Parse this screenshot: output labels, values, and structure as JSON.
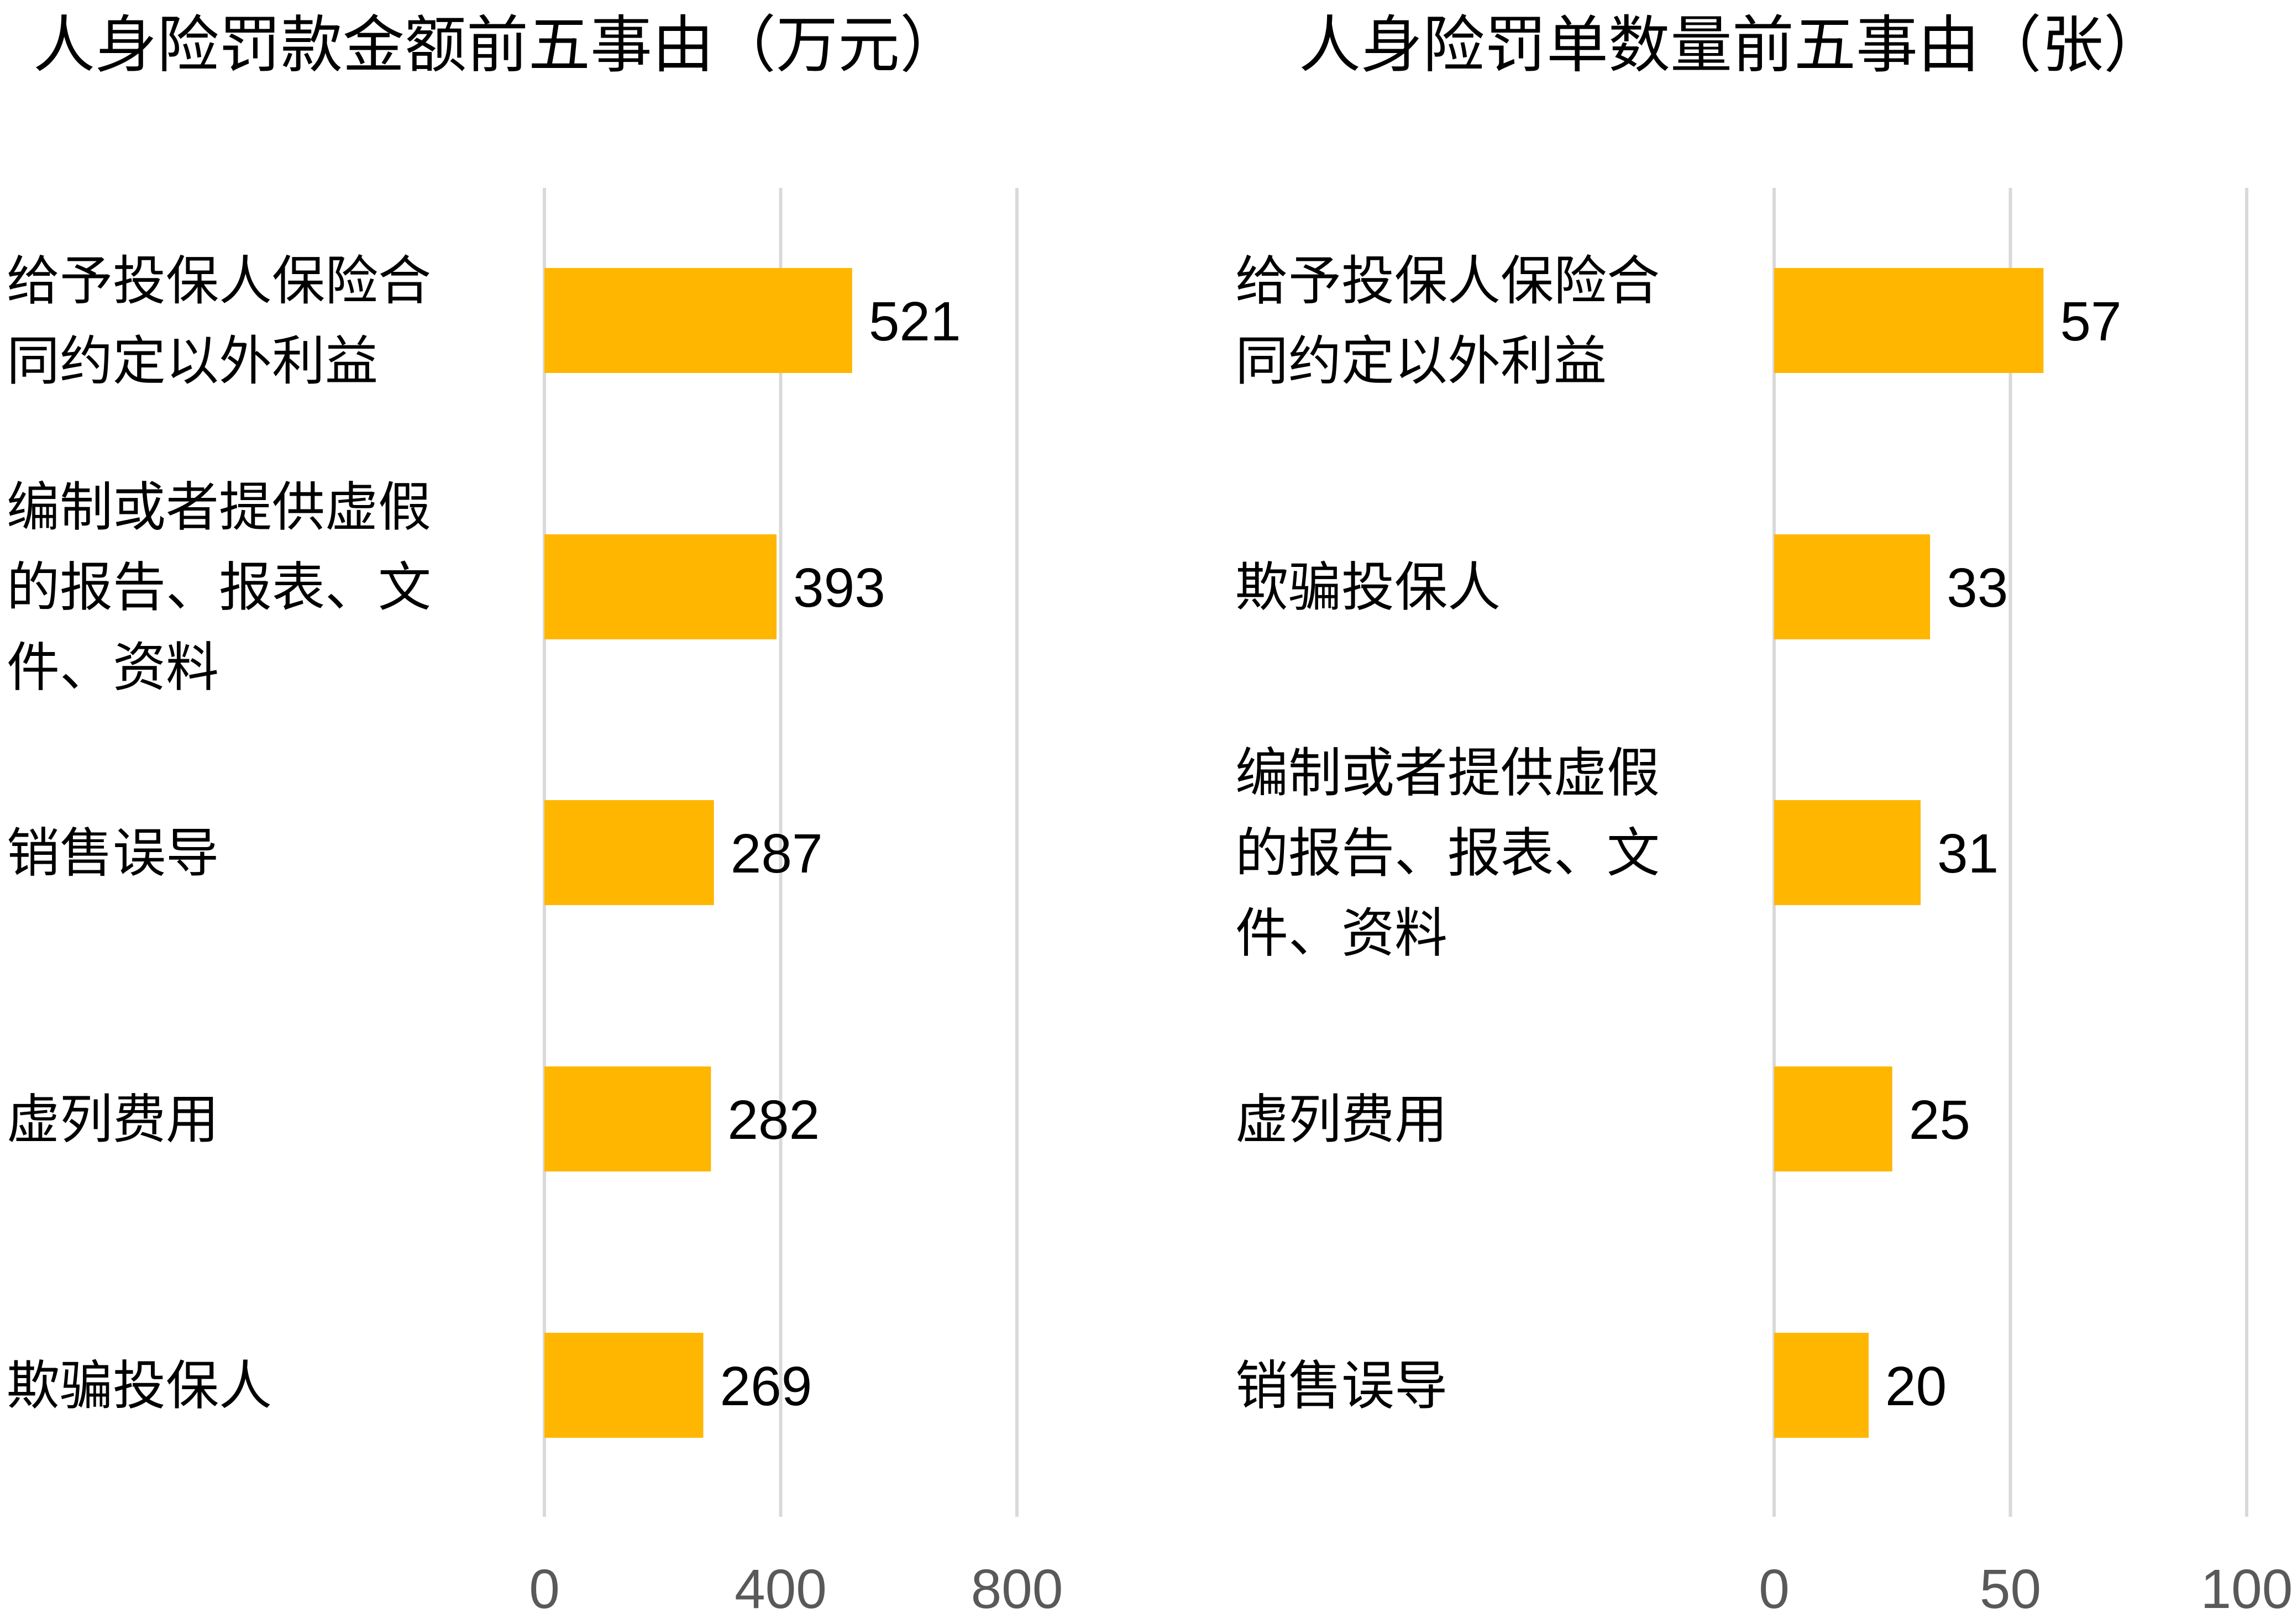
{
  "colors": {
    "bar": "#FFB600",
    "grid": "#D9D9D9",
    "text": "#000000",
    "tick": "#595959"
  },
  "chart_data": [
    {
      "type": "bar",
      "orientation": "horizontal",
      "title": "人身险罚款金额前五事由（万元）",
      "categories": [
        "给予投保人保险合同约定以外利益",
        "编制或者提供虚假的报告、报表、文件、资料",
        "销售误导",
        "虚列费用",
        "欺骗投保人"
      ],
      "category_lines": [
        [
          "给予投保人保险合",
          "同约定以外利益"
        ],
        [
          "编制或者提供虚假",
          "的报告、报表、文",
          "件、资料"
        ],
        [
          "销售误导"
        ],
        [
          "虚列费用"
        ],
        [
          "欺骗投保人"
        ]
      ],
      "values": [
        521,
        393,
        287,
        282,
        269
      ],
      "xlim": [
        0,
        800
      ],
      "xticks": [
        0,
        400,
        800
      ],
      "grid": true,
      "data_labels": true
    },
    {
      "type": "bar",
      "orientation": "horizontal",
      "title": "人身险罚单数量前五事由（张）",
      "categories": [
        "给予投保人保险合同约定以外利益",
        "欺骗投保人",
        "编制或者提供虚假的报告、报表、文件、资料",
        "虚列费用",
        "销售误导"
      ],
      "category_lines": [
        [
          "给予投保人保险合",
          "同约定以外利益"
        ],
        [
          "欺骗投保人"
        ],
        [
          "编制或者提供虚假",
          "的报告、报表、文",
          "件、资料"
        ],
        [
          "虚列费用"
        ],
        [
          "销售误导"
        ]
      ],
      "values": [
        57,
        33,
        31,
        25,
        20
      ],
      "xlim": [
        0,
        100
      ],
      "xticks": [
        0,
        50,
        100
      ],
      "grid": true,
      "data_labels": true
    }
  ]
}
